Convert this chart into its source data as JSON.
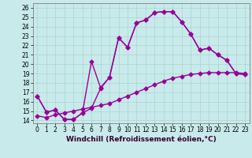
{
  "xlabel": "Windchill (Refroidissement éolien,°C)",
  "bg_color": "#c8eaea",
  "line_color": "#990099",
  "xlim": [
    -0.5,
    23.5
  ],
  "ylim": [
    13.7,
    26.5
  ],
  "xticks": [
    0,
    1,
    2,
    3,
    4,
    5,
    6,
    7,
    8,
    9,
    10,
    11,
    12,
    13,
    14,
    15,
    16,
    17,
    18,
    19,
    20,
    21,
    22,
    23
  ],
  "yticks": [
    14,
    15,
    16,
    17,
    18,
    19,
    20,
    21,
    22,
    23,
    24,
    25,
    26
  ],
  "line1_x": [
    0,
    1,
    2,
    3,
    4,
    5,
    6,
    7,
    8,
    9,
    10,
    11,
    12,
    13,
    14,
    15,
    16,
    17,
    18,
    19,
    20,
    21,
    22,
    23
  ],
  "line1_y": [
    16.6,
    14.9,
    15.1,
    14.1,
    14.1,
    14.8,
    20.3,
    17.5,
    18.6,
    22.8,
    21.8,
    24.4,
    24.7,
    25.5,
    25.6,
    25.6,
    24.5,
    23.2,
    21.5,
    21.7,
    21.0,
    20.4,
    19.0,
    18.9
  ],
  "line2_x": [
    0,
    1,
    2,
    3,
    4,
    5,
    6,
    7,
    8,
    9,
    10,
    11,
    12,
    13,
    14,
    15,
    16,
    17,
    18,
    19,
    20,
    21,
    22,
    23
  ],
  "line2_y": [
    16.6,
    14.9,
    15.1,
    14.1,
    14.1,
    14.8,
    15.3,
    17.4,
    18.6,
    22.8,
    21.8,
    24.4,
    24.7,
    25.5,
    25.6,
    25.6,
    24.5,
    23.2,
    21.5,
    21.7,
    21.0,
    20.4,
    19.0,
    18.9
  ],
  "line3_x": [
    0,
    1,
    2,
    3,
    4,
    5,
    6,
    7,
    8,
    9,
    10,
    11,
    12,
    13,
    14,
    15,
    16,
    17,
    18,
    19,
    20,
    21,
    22,
    23
  ],
  "line3_y": [
    14.5,
    14.3,
    14.6,
    14.8,
    15.0,
    15.2,
    15.4,
    15.6,
    15.8,
    16.2,
    16.6,
    17.0,
    17.4,
    17.8,
    18.2,
    18.5,
    18.7,
    18.9,
    19.0,
    19.1,
    19.1,
    19.1,
    19.1,
    19.0
  ],
  "marker": "D",
  "markersize": 2.5,
  "linewidth": 1.0,
  "grid_color": "#aad4d4",
  "xlabel_fontsize": 6.5,
  "tick_fontsize": 5.5
}
